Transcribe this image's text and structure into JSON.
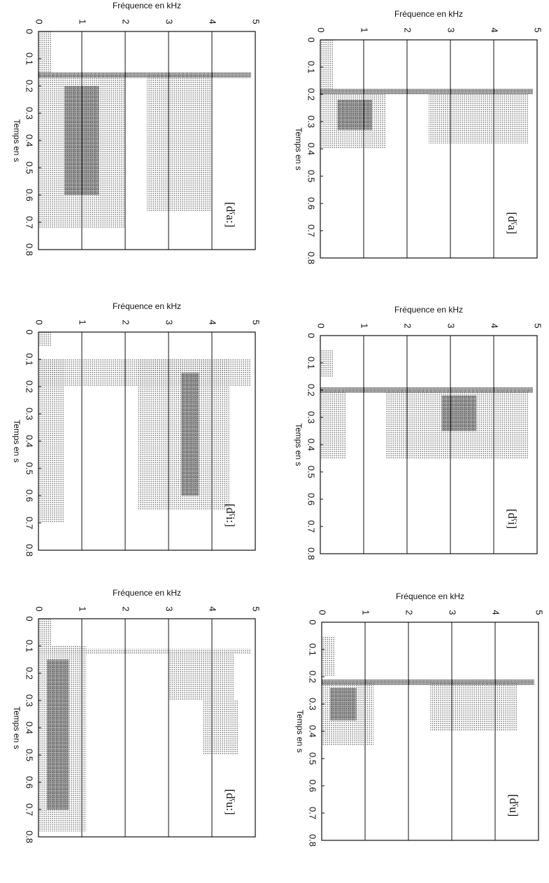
{
  "chart_data": [
    {
      "type": "spectrogram",
      "title": "[dˤa]",
      "xlabel": "Temps en s",
      "ylabel": "Fréquence en kHz",
      "xlim": [
        0,
        0.8
      ],
      "xticks": [
        0,
        0.1,
        0.2,
        0.3,
        0.4,
        0.5,
        0.6,
        0.7,
        0.8
      ],
      "ylim": [
        0,
        5
      ],
      "yticks": [
        0,
        1,
        2,
        3,
        4,
        5
      ],
      "grid": true,
      "regions": [
        {
          "t": [
            0,
            0.18
          ],
          "f": [
            0,
            0.3
          ],
          "level": 1
        },
        {
          "t": [
            0.18,
            0.2
          ],
          "f": [
            0,
            4.9
          ],
          "level": 2
        },
        {
          "t": [
            0.2,
            0.4
          ],
          "f": [
            0,
            1.5
          ],
          "level": 1
        },
        {
          "t": [
            0.22,
            0.33
          ],
          "f": [
            0.4,
            1.2
          ],
          "level": 2
        },
        {
          "t": [
            0.2,
            0.38
          ],
          "f": [
            2.5,
            4.8
          ],
          "level": 1
        }
      ]
    },
    {
      "type": "spectrogram",
      "title": "[dˤa:]",
      "xlabel": "Temps en s",
      "ylabel": "Fréquence en kHz",
      "xlim": [
        0,
        0.8
      ],
      "xticks": [
        0,
        0.1,
        0.2,
        0.3,
        0.4,
        0.5,
        0.6,
        0.7,
        0.8
      ],
      "ylim": [
        0,
        5
      ],
      "yticks": [
        0,
        1,
        2,
        3,
        4,
        5
      ],
      "grid": true,
      "regions": [
        {
          "t": [
            0,
            0.15
          ],
          "f": [
            0,
            0.3
          ],
          "level": 1
        },
        {
          "t": [
            0.15,
            0.17
          ],
          "f": [
            0,
            4.9
          ],
          "level": 2
        },
        {
          "t": [
            0.15,
            0.72
          ],
          "f": [
            0,
            2
          ],
          "level": 1
        },
        {
          "t": [
            0.2,
            0.6
          ],
          "f": [
            0.6,
            1.4
          ],
          "level": 2
        },
        {
          "t": [
            0.15,
            0.66
          ],
          "f": [
            2.5,
            4
          ],
          "level": 1
        }
      ]
    },
    {
      "type": "spectrogram",
      "title": "[dˤi]",
      "xlabel": "Temps en s",
      "ylabel": "Fréquence en kHz",
      "xlim": [
        0,
        0.8
      ],
      "xticks": [
        0,
        0.1,
        0.2,
        0.3,
        0.4,
        0.5,
        0.6,
        0.7,
        0.8
      ],
      "ylim": [
        0,
        5
      ],
      "yticks": [
        0,
        1,
        2,
        3,
        4,
        5
      ],
      "grid": true,
      "regions": [
        {
          "t": [
            0.05,
            0.15
          ],
          "f": [
            0,
            0.3
          ],
          "level": 1
        },
        {
          "t": [
            0.19,
            0.21
          ],
          "f": [
            0,
            4.9
          ],
          "level": 2
        },
        {
          "t": [
            0.2,
            0.45
          ],
          "f": [
            0,
            0.6
          ],
          "level": 1
        },
        {
          "t": [
            0.2,
            0.45
          ],
          "f": [
            1.5,
            4.8
          ],
          "level": 1
        },
        {
          "t": [
            0.22,
            0.35
          ],
          "f": [
            2.8,
            3.6
          ],
          "level": 2
        }
      ]
    },
    {
      "type": "spectrogram",
      "title": "[dˤi:]",
      "xlabel": "Temps en s",
      "ylabel": "Fréquence en kHz",
      "xlim": [
        0,
        0.8
      ],
      "xticks": [
        0,
        0.1,
        0.2,
        0.3,
        0.4,
        0.5,
        0.6,
        0.7,
        0.8
      ],
      "ylim": [
        0,
        5
      ],
      "yticks": [
        0,
        1,
        2,
        3,
        4,
        5
      ],
      "grid": true,
      "regions": [
        {
          "t": [
            0,
            0.05
          ],
          "f": [
            0,
            0.3
          ],
          "level": 1
        },
        {
          "t": [
            0.1,
            0.2
          ],
          "f": [
            0,
            4.9
          ],
          "level": 1
        },
        {
          "t": [
            0.1,
            0.7
          ],
          "f": [
            0,
            0.6
          ],
          "level": 1
        },
        {
          "t": [
            0.1,
            0.65
          ],
          "f": [
            2.3,
            4.4
          ],
          "level": 1
        },
        {
          "t": [
            0.15,
            0.6
          ],
          "f": [
            3.3,
            3.7
          ],
          "level": 2
        }
      ]
    },
    {
      "type": "spectrogram",
      "title": "[dˤu]",
      "xlabel": "Temps en s",
      "ylabel": "Fréquence en kHz",
      "xlim": [
        0,
        0.8
      ],
      "xticks": [
        0,
        0.1,
        0.2,
        0.3,
        0.4,
        0.5,
        0.6,
        0.7,
        0.8
      ],
      "ylim": [
        0,
        5
      ],
      "yticks": [
        0,
        1,
        2,
        3,
        4,
        5
      ],
      "grid": true,
      "regions": [
        {
          "t": [
            0.05,
            0.2
          ],
          "f": [
            0,
            0.3
          ],
          "level": 1
        },
        {
          "t": [
            0.21,
            0.23
          ],
          "f": [
            0,
            4.9
          ],
          "level": 2
        },
        {
          "t": [
            0.22,
            0.45
          ],
          "f": [
            0,
            1.2
          ],
          "level": 1
        },
        {
          "t": [
            0.24,
            0.36
          ],
          "f": [
            0.2,
            0.8
          ],
          "level": 2
        },
        {
          "t": [
            0.22,
            0.4
          ],
          "f": [
            2.5,
            4.5
          ],
          "level": 1
        }
      ]
    },
    {
      "type": "spectrogram",
      "title": "[dˤu:]",
      "xlabel": "Temps en s",
      "ylabel": "Fréquence en kHz",
      "xlim": [
        0,
        0.8
      ],
      "xticks": [
        0,
        0.1,
        0.2,
        0.3,
        0.4,
        0.5,
        0.6,
        0.7,
        0.8
      ],
      "ylim": [
        0,
        5
      ],
      "yticks": [
        0,
        1,
        2,
        3,
        4,
        5
      ],
      "grid": true,
      "regions": [
        {
          "t": [
            0,
            0.1
          ],
          "f": [
            0,
            0.3
          ],
          "level": 1
        },
        {
          "t": [
            0.11,
            0.13
          ],
          "f": [
            0,
            4.9
          ],
          "level": 1
        },
        {
          "t": [
            0.1,
            0.78
          ],
          "f": [
            0,
            1.1
          ],
          "level": 1
        },
        {
          "t": [
            0.15,
            0.7
          ],
          "f": [
            0.2,
            0.7
          ],
          "level": 2
        },
        {
          "t": [
            0.12,
            0.3
          ],
          "f": [
            3,
            4.5
          ],
          "level": 1
        },
        {
          "t": [
            0.3,
            0.5
          ],
          "f": [
            3.8,
            4.6
          ],
          "level": 1
        }
      ]
    }
  ]
}
